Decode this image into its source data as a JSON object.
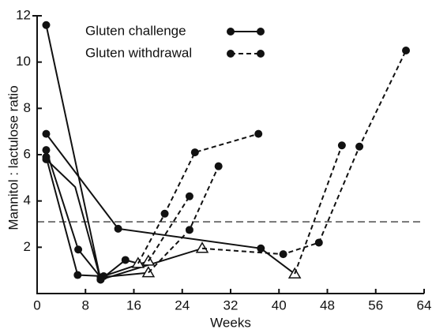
{
  "chart_data": {
    "type": "line",
    "x_label": "Weeks",
    "y_label": "Mannitol : lactulose ratio",
    "xlim": [
      0,
      64
    ],
    "xticks": [
      0,
      8,
      16,
      24,
      32,
      40,
      48,
      56,
      64
    ],
    "ylim": [
      0,
      12
    ],
    "yticks": [
      2,
      4,
      6,
      8,
      10,
      12
    ],
    "reference_line": 3.1,
    "color": "#111111",
    "series": [
      {
        "name": "Gluten challenge",
        "dash": "solid",
        "lines": [
          {
            "x": [
              1.5,
              10.5,
              14.6,
              16.7
            ],
            "y": [
              11.6,
              0.6,
              1.45,
              1.3
            ],
            "markers": [
              "circle",
              "circle",
              "circle",
              "triangle"
            ]
          },
          {
            "x": [
              1.5,
              13.4,
              37,
              42.6
            ],
            "y": [
              6.9,
              2.8,
              1.95,
              0.85
            ],
            "markers": [
              "circle",
              "circle",
              "circle",
              "triangle"
            ]
          },
          {
            "x": [
              1.5,
              6.8,
              10.5,
              18.4
            ],
            "y": [
              6.2,
              1.9,
              0.7,
              0.9
            ],
            "markers": [
              "circle",
              "circle",
              "circle",
              "triangle"
            ]
          },
          {
            "x": [
              1.5,
              6.7,
              11,
              18.4
            ],
            "y": [
              5.9,
              0.8,
              0.75,
              1.4
            ],
            "markers": [
              "circle",
              "circle",
              "circle",
              "triangle"
            ]
          },
          {
            "x": [
              1.5,
              6.3,
              10.5,
              27.3
            ],
            "y": [
              5.8,
              4.6,
              0.6,
              1.95
            ],
            "markers": [
              "circle",
              "none",
              "circle",
              "triangle"
            ]
          }
        ]
      },
      {
        "name": "Gluten withdrawal",
        "dash": "dashed",
        "lines": [
          {
            "x": [
              16.7,
              21.1,
              26.1,
              36.6
            ],
            "y": [
              1.3,
              3.45,
              6.1,
              6.9
            ],
            "markers": [
              "none",
              "circle",
              "circle",
              "circle"
            ]
          },
          {
            "x": [
              42.6,
              50.4
            ],
            "y": [
              0.85,
              6.4
            ],
            "markers": [
              "none",
              "circle"
            ]
          },
          {
            "x": [
              18.4,
              25.2,
              30
            ],
            "y": [
              0.9,
              2.75,
              5.5
            ],
            "markers": [
              "none",
              "circle",
              "circle"
            ]
          },
          {
            "x": [
              18.4,
              25.2
            ],
            "y": [
              1.4,
              4.2
            ],
            "markers": [
              "none",
              "circle"
            ]
          },
          {
            "x": [
              27.3,
              40.7,
              46.6,
              53.3,
              61
            ],
            "y": [
              1.95,
              1.7,
              2.2,
              6.35,
              10.5
            ],
            "markers": [
              "none",
              "circle",
              "circle",
              "circle",
              "circle"
            ]
          }
        ]
      }
    ]
  }
}
